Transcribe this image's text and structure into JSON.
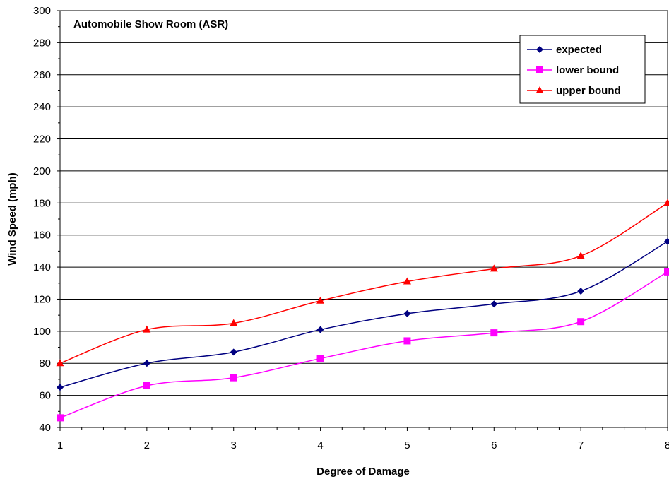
{
  "chart_data": {
    "type": "line",
    "title": "Automobile Show Room (ASR)",
    "xlabel": "Degree of Damage",
    "ylabel": "Wind Speed (mph)",
    "x": [
      1,
      2,
      3,
      4,
      5,
      6,
      7,
      8
    ],
    "xlim": [
      1,
      8
    ],
    "ylim": [
      40,
      300
    ],
    "yticks": [
      40,
      60,
      80,
      100,
      120,
      140,
      160,
      180,
      200,
      220,
      240,
      260,
      280,
      300
    ],
    "grid": true,
    "legend_position": "top-right",
    "series": [
      {
        "name": "expected",
        "color": "#000080",
        "marker": "diamond",
        "values": [
          65,
          80,
          87,
          101,
          111,
          117,
          125,
          156
        ]
      },
      {
        "name": "lower bound",
        "color": "#FF00FF",
        "marker": "square",
        "values": [
          46,
          66,
          71,
          83,
          94,
          99,
          106,
          137
        ]
      },
      {
        "name": "upper bound",
        "color": "#FF0000",
        "marker": "triangle",
        "values": [
          80,
          101,
          105,
          119,
          131,
          139,
          147,
          180
        ]
      }
    ]
  }
}
